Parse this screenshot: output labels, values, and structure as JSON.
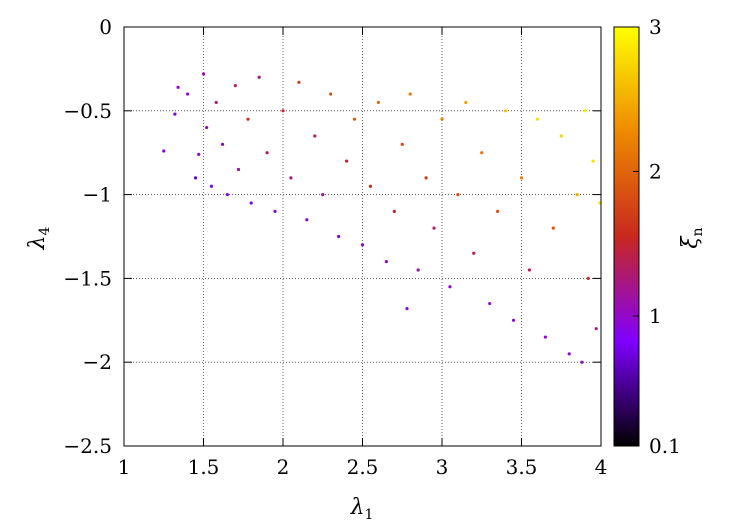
{
  "chart_data": {
    "type": "scatter",
    "title": "",
    "xlabel": "λ",
    "xlabel_sub": "1",
    "ylabel": "λ",
    "ylabel_sub": "4",
    "xlim": [
      1,
      4
    ],
    "ylim": [
      -2.5,
      0
    ],
    "x_ticks": [
      1,
      1.5,
      2,
      2.5,
      3,
      3.5,
      4
    ],
    "x_tick_labels": [
      "1",
      "1.5",
      "2",
      "2.5",
      "3",
      "3.5",
      "4"
    ],
    "y_ticks": [
      0,
      -0.5,
      -1,
      -1.5,
      -2,
      -2.5
    ],
    "y_tick_labels": [
      "0",
      "−0.5",
      "−1",
      "−1.5",
      "−2",
      "−2.5"
    ],
    "grid": true,
    "colorbar": {
      "label": "ξ",
      "label_sub": "n",
      "range": [
        0.1,
        3
      ],
      "ticks": [
        0.1,
        1,
        2,
        3
      ],
      "tick_labels": [
        "0.1",
        "1",
        "2",
        "3"
      ],
      "colors": [
        "#000000",
        "#7f00ff",
        "#c8281e",
        "#ee8a00",
        "#ffff00"
      ]
    },
    "point_color_scale": "gnuplot-pm3d (black→purple→red→orange→yellow)",
    "points": [
      [
        1.25,
        -0.74,
        0.9
      ],
      [
        1.32,
        -0.52,
        0.8
      ],
      [
        1.34,
        -0.36,
        1.0
      ],
      [
        1.4,
        -0.4,
        0.9
      ],
      [
        1.45,
        -0.9,
        0.7
      ],
      [
        1.47,
        -0.76,
        1.0
      ],
      [
        1.5,
        -0.28,
        1.1
      ],
      [
        1.52,
        -0.6,
        1.0
      ],
      [
        1.55,
        -0.95,
        0.9
      ],
      [
        1.58,
        -0.45,
        1.3
      ],
      [
        1.62,
        -0.7,
        1.0
      ],
      [
        1.65,
        -1.0,
        0.9
      ],
      [
        1.7,
        -0.35,
        1.4
      ],
      [
        1.72,
        -0.85,
        1.1
      ],
      [
        1.78,
        -0.55,
        1.6
      ],
      [
        1.8,
        -1.05,
        0.9
      ],
      [
        1.85,
        -0.3,
        1.2
      ],
      [
        1.9,
        -0.75,
        1.3
      ],
      [
        1.95,
        -1.1,
        1.0
      ],
      [
        2.0,
        -0.5,
        1.5
      ],
      [
        2.05,
        -0.9,
        1.2
      ],
      [
        2.1,
        -0.33,
        1.7
      ],
      [
        2.15,
        -1.15,
        1.0
      ],
      [
        2.2,
        -0.65,
        1.4
      ],
      [
        2.25,
        -1.0,
        1.1
      ],
      [
        2.3,
        -0.4,
        1.8
      ],
      [
        2.35,
        -1.25,
        0.9
      ],
      [
        2.4,
        -0.8,
        1.5
      ],
      [
        2.45,
        -0.55,
        1.9
      ],
      [
        2.5,
        -1.3,
        1.0
      ],
      [
        2.55,
        -0.95,
        1.6
      ],
      [
        2.6,
        -0.45,
        2.0
      ],
      [
        2.65,
        -1.4,
        1.0
      ],
      [
        2.7,
        -1.1,
        1.5
      ],
      [
        2.75,
        -0.7,
        1.8
      ],
      [
        2.78,
        -1.68,
        0.9
      ],
      [
        2.8,
        -0.4,
        2.1
      ],
      [
        2.85,
        -1.45,
        1.1
      ],
      [
        2.9,
        -0.9,
        1.7
      ],
      [
        2.95,
        -1.2,
        1.4
      ],
      [
        3.0,
        -0.55,
        2.2
      ],
      [
        3.05,
        -1.55,
        1.0
      ],
      [
        3.1,
        -1.0,
        1.8
      ],
      [
        3.15,
        -0.45,
        2.4
      ],
      [
        3.2,
        -1.35,
        1.4
      ],
      [
        3.25,
        -0.75,
        2.1
      ],
      [
        3.3,
        -1.65,
        1.0
      ],
      [
        3.35,
        -1.1,
        1.8
      ],
      [
        3.4,
        -0.5,
        2.6
      ],
      [
        3.45,
        -1.75,
        1.0
      ],
      [
        3.5,
        -0.9,
        2.2
      ],
      [
        3.55,
        -1.45,
        1.4
      ],
      [
        3.6,
        -0.55,
        2.8
      ],
      [
        3.65,
        -1.85,
        0.9
      ],
      [
        3.7,
        -1.2,
        1.9
      ],
      [
        3.75,
        -0.65,
        2.7
      ],
      [
        3.8,
        -1.95,
        1.0
      ],
      [
        3.85,
        -1.0,
        2.5
      ],
      [
        3.88,
        -2.0,
        1.0
      ],
      [
        3.9,
        -0.5,
        2.9
      ],
      [
        3.92,
        -1.5,
        1.6
      ],
      [
        3.95,
        -0.8,
        2.8
      ],
      [
        3.97,
        -1.8,
        1.2
      ],
      [
        3.99,
        -1.05,
        2.9
      ]
    ]
  }
}
